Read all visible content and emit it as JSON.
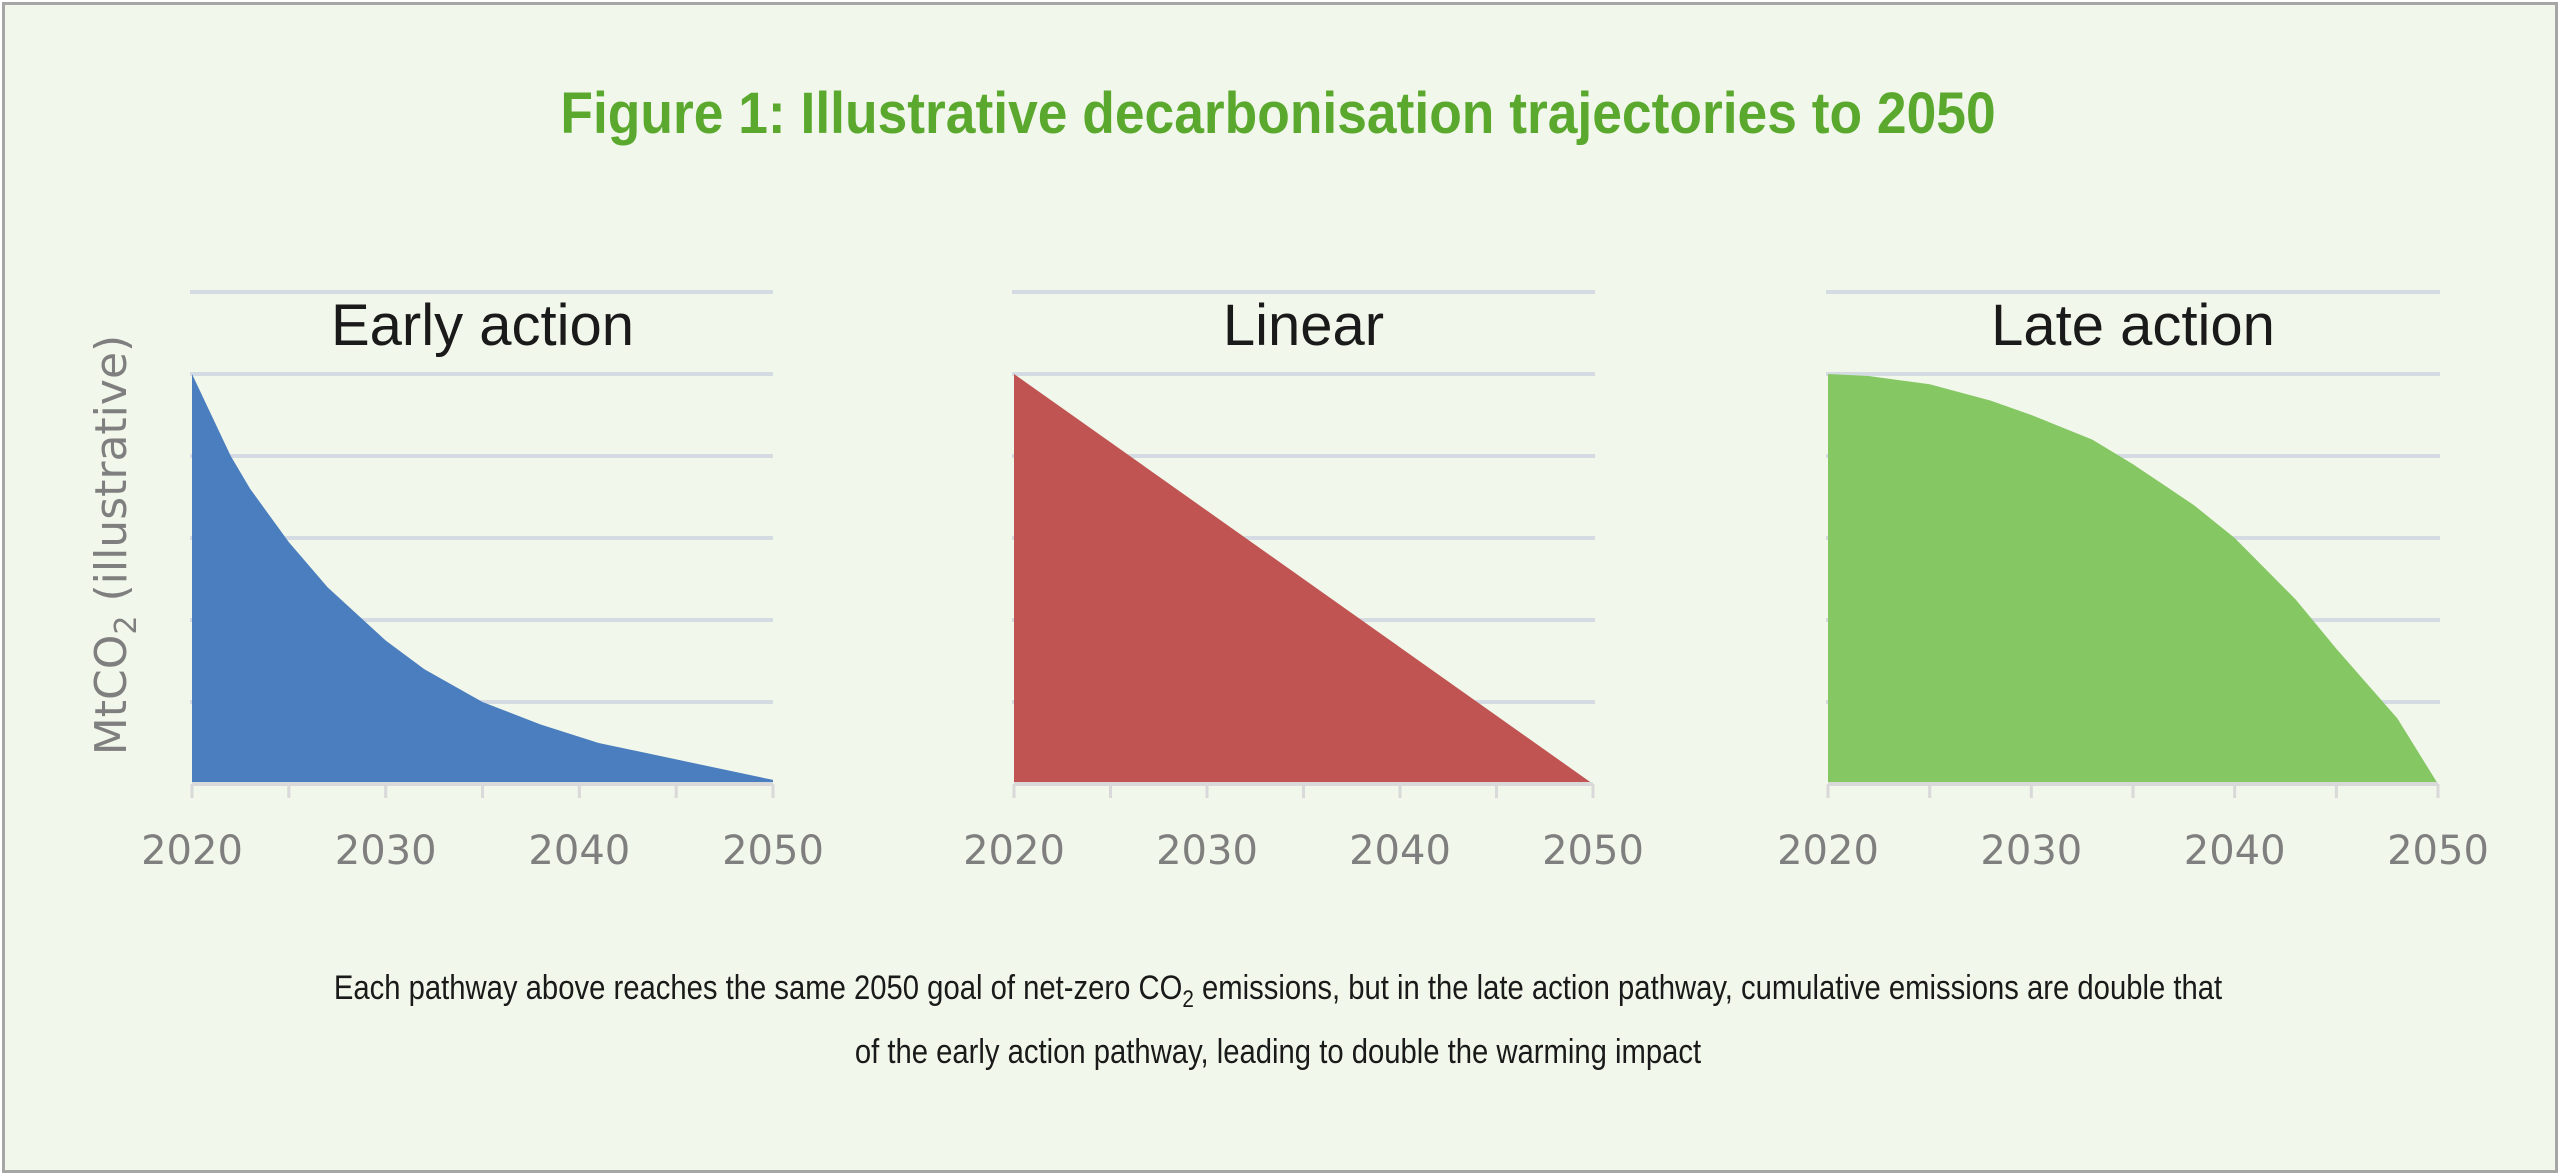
{
  "title": "Figure 1: Illustrative decarbonisation trajectories to 2050",
  "ylabel_main": "MtCO",
  "ylabel_sub": "2",
  "ylabel_tail": " (illustrative)",
  "caption": {
    "part1": "Each pathway above reaches the same 2050 goal of net-zero CO",
    "sub": "2",
    "part2": " emissions, but in the late action pathway, cumulative emissions are double that",
    "line2": "of the early action pathway, leading to double the warming impact"
  },
  "colors": {
    "grid": "#d4dbe3",
    "axis": "#d9d9d9"
  },
  "chart_data": [
    {
      "type": "area",
      "title": "Early action",
      "color": "#4a7ebf",
      "xticks": [
        2020,
        2030,
        2040,
        2050
      ],
      "xlim": [
        2020,
        2050
      ],
      "ylim": [
        0,
        1.2
      ],
      "x": [
        2020,
        2021,
        2022,
        2023,
        2025,
        2027,
        2030,
        2032,
        2035,
        2038,
        2041,
        2045,
        2050
      ],
      "y": [
        1.0,
        0.9,
        0.8,
        0.72,
        0.59,
        0.48,
        0.35,
        0.28,
        0.2,
        0.145,
        0.1,
        0.06,
        0.01
      ]
    },
    {
      "type": "area",
      "title": "Linear",
      "color": "#c05452",
      "xticks": [
        2020,
        2030,
        2040,
        2050
      ],
      "xlim": [
        2020,
        2050
      ],
      "ylim": [
        0,
        1.2
      ],
      "x": [
        2020,
        2050
      ],
      "y": [
        1.0,
        0.0
      ]
    },
    {
      "type": "area",
      "title": "Late action",
      "color": "#84c763",
      "xticks": [
        2020,
        2030,
        2040,
        2050
      ],
      "xlim": [
        2020,
        2050
      ],
      "ylim": [
        0,
        1.2
      ],
      "x": [
        2020,
        2022,
        2025,
        2028,
        2030,
        2033,
        2035,
        2038,
        2040,
        2043,
        2045,
        2048,
        2050
      ],
      "y": [
        1.0,
        0.995,
        0.975,
        0.935,
        0.9,
        0.84,
        0.78,
        0.68,
        0.6,
        0.45,
        0.33,
        0.16,
        0.0
      ]
    }
  ]
}
